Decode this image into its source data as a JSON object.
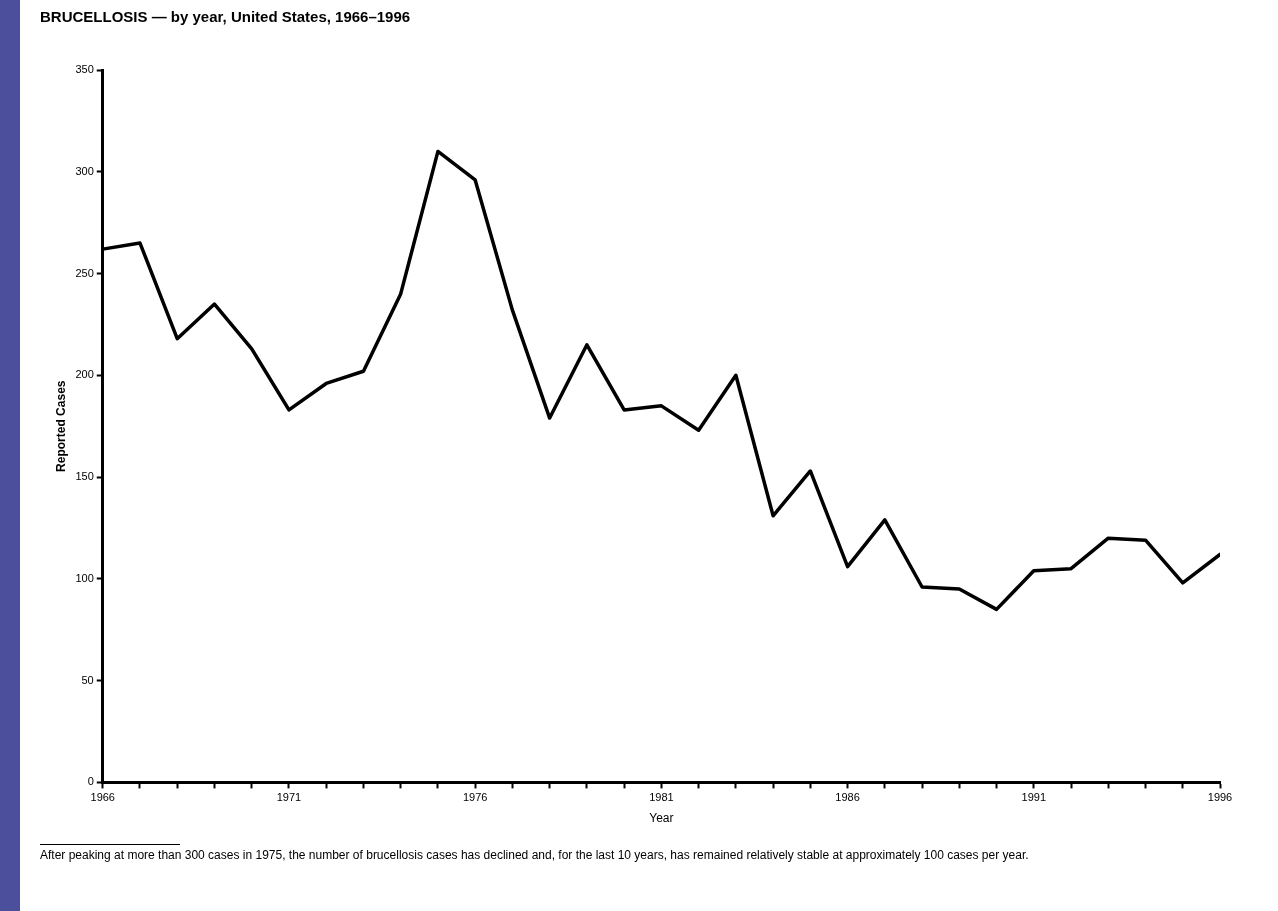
{
  "chart_data": {
    "type": "line",
    "title": "BRUCELLOSIS — by year, United States, 1966–1996",
    "xlabel": "Year",
    "ylabel": "Reported Cases",
    "x": [
      1966,
      1967,
      1968,
      1969,
      1970,
      1971,
      1972,
      1973,
      1974,
      1975,
      1976,
      1977,
      1978,
      1979,
      1980,
      1981,
      1982,
      1983,
      1984,
      1985,
      1986,
      1987,
      1988,
      1989,
      1990,
      1991,
      1992,
      1993,
      1994,
      1995,
      1996
    ],
    "series": [
      {
        "color": "#000000",
        "values": [
          262,
          265,
          218,
          235,
          213,
          183,
          196,
          202,
          240,
          310,
          296,
          232,
          179,
          215,
          183,
          185,
          173,
          200,
          131,
          153,
          106,
          129,
          96,
          95,
          85,
          104,
          105,
          120,
          119,
          98,
          112
        ]
      }
    ],
    "xlim": [
      1966,
      1996
    ],
    "xticks": [
      1966,
      {
        "value": 1967,
        "label": null
      },
      {
        "value": 1968,
        "label": null
      },
      {
        "value": 1969,
        "label": null
      },
      {
        "value": 1970,
        "label": null
      },
      1971,
      {
        "value": 1972,
        "label": null
      },
      {
        "value": 1973,
        "label": null
      },
      {
        "value": 1974,
        "label": null
      },
      {
        "value": 1975,
        "label": null
      },
      1976,
      {
        "value": 1977,
        "label": null
      },
      {
        "value": 1978,
        "label": null
      },
      {
        "value": 1979,
        "label": null
      },
      {
        "value": 1980,
        "label": null
      },
      1981,
      {
        "value": 1982,
        "label": null
      },
      {
        "value": 1983,
        "label": null
      },
      {
        "value": 1984,
        "label": null
      },
      {
        "value": 1985,
        "label": null
      },
      1986,
      {
        "value": 1987,
        "label": null
      },
      {
        "value": 1988,
        "label": null
      },
      {
        "value": 1989,
        "label": null
      },
      {
        "value": 1990,
        "label": null
      },
      1991,
      {
        "value": 1992,
        "label": null
      },
      {
        "value": 1993,
        "label": null
      },
      {
        "value": 1994,
        "label": null
      },
      {
        "value": 1995,
        "label": null
      },
      1996
    ],
    "ylim": [
      0,
      350
    ],
    "yticks": [
      0,
      50,
      100,
      150,
      200,
      250,
      300,
      350
    ],
    "grid": false,
    "legend": false,
    "marker": "none",
    "line_style": "solid",
    "annotations": [
      "After peaking at more than 300 cases in 1975, the number of brucellosis cases has declined and, for the last 10 years, has remained relatively stable at approximately 100 cases per year."
    ]
  }
}
